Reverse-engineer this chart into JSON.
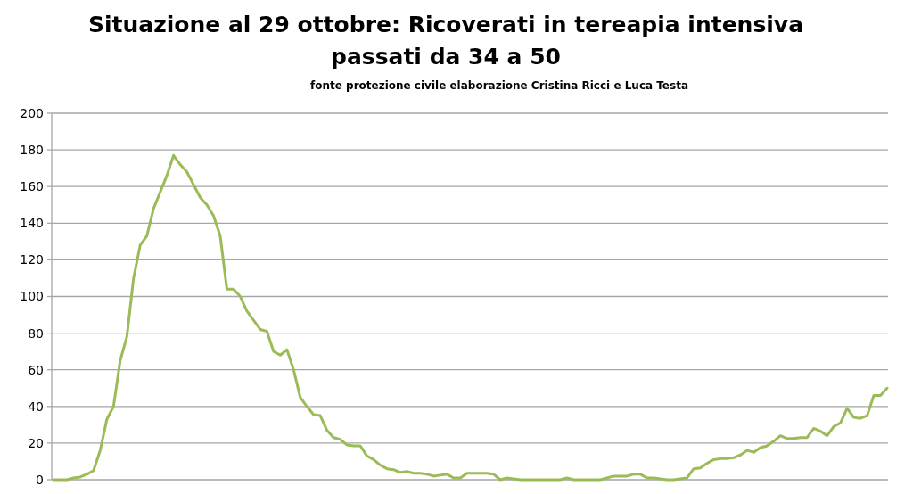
{
  "chart_data": {
    "type": "line",
    "title": "Situazione al 29 ottobre: Ricoverati in tereapia intensiva\npassati da 34 a 50",
    "subtitle": "fonte protezione civile elaborazione Cristina Ricci e Luca Testa",
    "categories": [
      null,
      null,
      null,
      null,
      null,
      null,
      null,
      null,
      null,
      null,
      null,
      null,
      null,
      null,
      null,
      null,
      null,
      null,
      null,
      null,
      null,
      null,
      null,
      null,
      null,
      null,
      null,
      null,
      null,
      null,
      null,
      null,
      null,
      null,
      null,
      null,
      null,
      null,
      null,
      null,
      null,
      null,
      null,
      null,
      null,
      null,
      null,
      null,
      null,
      null,
      null,
      null,
      null,
      null,
      null,
      null,
      null,
      null,
      null,
      null,
      null,
      null,
      null,
      null,
      null,
      null,
      null,
      null,
      null,
      null,
      null,
      null,
      null,
      null,
      null,
      null,
      null,
      null,
      null,
      null,
      null,
      null,
      null,
      null,
      null,
      null,
      null,
      null,
      null,
      null,
      null,
      null,
      null,
      null,
      null,
      null,
      null,
      null,
      null,
      null,
      null,
      null,
      null,
      null,
      null,
      null,
      null,
      null,
      null,
      null,
      null,
      null,
      null,
      null,
      null,
      null,
      null,
      null,
      null,
      null,
      null,
      null,
      null,
      null,
      null,
      null
    ],
    "series": [
      {
        "color": "#9bbb59",
        "values": [
          0,
          0,
          0,
          1,
          1.5,
          3,
          5,
          16,
          33,
          40,
          65,
          78,
          110,
          128,
          133,
          148,
          157,
          166,
          177,
          172,
          168,
          161,
          154,
          150,
          144,
          133,
          104,
          104,
          100,
          92,
          87,
          82,
          81,
          70,
          68,
          71,
          60,
          45,
          40,
          35.5,
          35,
          27,
          23,
          22,
          19,
          18.5,
          18.5,
          13,
          11,
          8,
          6,
          5.5,
          4,
          4.5,
          3.5,
          3.5,
          3,
          2,
          2.5,
          3,
          1,
          1,
          3.5,
          3.5,
          3.5,
          3.5,
          3,
          0,
          1,
          0.5,
          0,
          0,
          0,
          0,
          0,
          0,
          0,
          1,
          0,
          0,
          0,
          0,
          0,
          1,
          2,
          2,
          2,
          3,
          3,
          1,
          1,
          0.5,
          0,
          0,
          0.5,
          1,
          6,
          6.5,
          9,
          11,
          11.5,
          11.5,
          12,
          13.5,
          16,
          15,
          17.5,
          18.5,
          21,
          24,
          22.5,
          22.5,
          23,
          23,
          28,
          26.5,
          24,
          29,
          31,
          39,
          34,
          33.5,
          35,
          46,
          46,
          50
        ]
      }
    ],
    "ylim": [
      0,
      200
    ],
    "yticks": [
      0,
      20,
      40,
      60,
      80,
      100,
      120,
      140,
      160,
      180,
      200
    ],
    "grid": "y",
    "marker": "none",
    "line_style": "solid"
  }
}
